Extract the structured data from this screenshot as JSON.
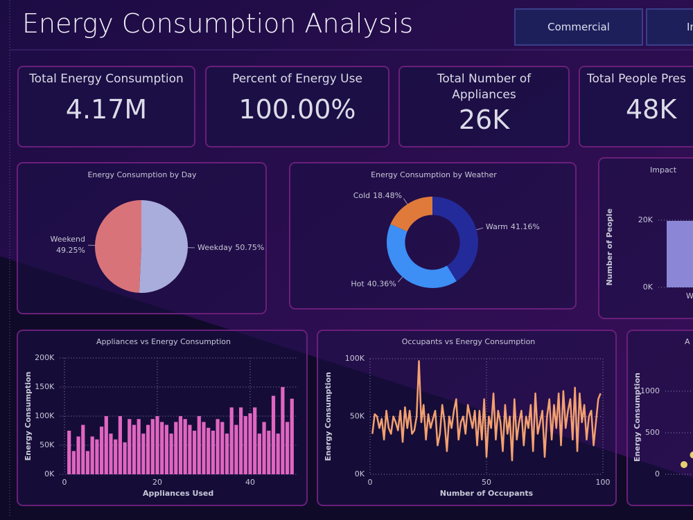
{
  "header": {
    "title": "Energy Consumption Analysis",
    "buttons": [
      "Commercial",
      "In"
    ]
  },
  "kpis": [
    {
      "label": "Total Energy Consumption",
      "value": "4.17M"
    },
    {
      "label": "Percent of Energy Use",
      "value": "100.00%"
    },
    {
      "label": "Total Number of Appliances",
      "value": "26K"
    },
    {
      "label": "Total People Pres",
      "value": "48K"
    }
  ],
  "chart_data": [
    {
      "type": "pie",
      "title": "Energy Consumption by Day",
      "categories": [
        "Weekday",
        "Weekend"
      ],
      "values": [
        50.75,
        49.25
      ],
      "value_labels": [
        "50.75%",
        "49.25%"
      ],
      "colors": [
        "#a9addc",
        "#d9737a"
      ]
    },
    {
      "type": "donut",
      "title": "Energy Consumption by Weather",
      "categories": [
        "Warm",
        "Hot",
        "Cold"
      ],
      "values": [
        41.16,
        40.36,
        18.48
      ],
      "value_labels": [
        "41.16%",
        "40.36%",
        "18.48%"
      ],
      "colors": [
        "#232a9a",
        "#3d8ef5",
        "#e07a3a"
      ]
    },
    {
      "type": "bar",
      "title": "Impact",
      "ylabel": "Number of People",
      "categories": [
        "Wa"
      ],
      "values": [
        19800
      ],
      "color": "#8b86d6",
      "ylim": [
        0,
        24000
      ],
      "yticks": [
        {
          "value": 0,
          "label": "0K"
        },
        {
          "value": 20000,
          "label": "20K"
        }
      ],
      "grid": true
    },
    {
      "type": "xbar",
      "title": "Appliances vs Energy Consumption",
      "xlabel": "Appliances Used",
      "ylabel": "Energy Consumption",
      "x": [
        1,
        2,
        3,
        4,
        5,
        6,
        7,
        8,
        9,
        10,
        11,
        12,
        13,
        14,
        15,
        16,
        17,
        18,
        19,
        20,
        21,
        22,
        23,
        24,
        25,
        26,
        27,
        28,
        29,
        30,
        31,
        32,
        33,
        34,
        35,
        36,
        37,
        38,
        39,
        40,
        41,
        42,
        43,
        44,
        45,
        46,
        47,
        48,
        49
      ],
      "values": [
        75000,
        40000,
        65000,
        85000,
        40000,
        65000,
        60000,
        82000,
        100000,
        70000,
        60000,
        100000,
        55000,
        95000,
        85000,
        95000,
        70000,
        85000,
        95000,
        100000,
        90000,
        85000,
        70000,
        90000,
        100000,
        95000,
        85000,
        75000,
        100000,
        90000,
        80000,
        75000,
        95000,
        90000,
        70000,
        115000,
        85000,
        115000,
        100000,
        105000,
        115000,
        70000,
        90000,
        75000,
        135000,
        70000,
        150000,
        90000,
        130000
      ],
      "color": "#e066c0",
      "xlim": [
        -1,
        50
      ],
      "xticks": [
        0,
        20,
        40
      ],
      "ylim": [
        0,
        200000
      ],
      "yticks": [
        {
          "value": 0,
          "label": "0K"
        },
        {
          "value": 50000,
          "label": "50K"
        },
        {
          "value": 100000,
          "label": "100K"
        },
        {
          "value": 150000,
          "label": "150K"
        },
        {
          "value": 200000,
          "label": "200K"
        }
      ],
      "grid": true
    },
    {
      "type": "line",
      "title": "Occupants vs Energy Consumption",
      "xlabel": "Number of Occupants",
      "ylabel": "Energy Consumption",
      "x": [
        1,
        2,
        3,
        4,
        5,
        6,
        7,
        8,
        9,
        10,
        11,
        12,
        13,
        14,
        15,
        16,
        17,
        18,
        19,
        20,
        21,
        22,
        23,
        24,
        25,
        26,
        27,
        28,
        29,
        30,
        31,
        32,
        33,
        34,
        35,
        36,
        37,
        38,
        39,
        40,
        41,
        42,
        43,
        44,
        45,
        46,
        47,
        48,
        49,
        50,
        51,
        52,
        53,
        54,
        55,
        56,
        57,
        58,
        59,
        60,
        61,
        62,
        63,
        64,
        65,
        66,
        67,
        68,
        69,
        70,
        71,
        72,
        73,
        74,
        75,
        76,
        77,
        78,
        79,
        80,
        81,
        82,
        83,
        84,
        85,
        86,
        87,
        88,
        89,
        90,
        91,
        92,
        93,
        94,
        95,
        96,
        97,
        98,
        99
      ],
      "values": [
        35000,
        52000,
        50000,
        40000,
        48000,
        30000,
        55000,
        40000,
        35000,
        50000,
        45000,
        38000,
        55000,
        28000,
        58000,
        40000,
        55000,
        35000,
        38000,
        50000,
        98000,
        45000,
        60000,
        30000,
        52000,
        40000,
        48000,
        55000,
        25000,
        35000,
        60000,
        45000,
        20000,
        50000,
        40000,
        55000,
        65000,
        30000,
        45000,
        50000,
        35000,
        60000,
        50000,
        40000,
        55000,
        25000,
        55000,
        30000,
        65000,
        15000,
        50000,
        40000,
        70000,
        30000,
        55000,
        45000,
        20000,
        60000,
        35000,
        50000,
        12000,
        65000,
        30000,
        45000,
        55000,
        25000,
        50000,
        40000,
        60000,
        20000,
        70000,
        35000,
        45000,
        55000,
        15000,
        50000,
        65000,
        30000,
        60000,
        40000,
        70000,
        25000,
        72000,
        40000,
        55000,
        65000,
        30000,
        75000,
        20000,
        70000,
        45000,
        60000,
        30000,
        50000,
        55000,
        25000,
        45000,
        65000,
        70000
      ],
      "color": "#f4a070",
      "xlim": [
        0,
        100
      ],
      "xticks": [
        0,
        50,
        100
      ],
      "ylim": [
        0,
        100000
      ],
      "yticks": [
        {
          "value": 0,
          "label": "0K"
        },
        {
          "value": 50000,
          "label": "50K"
        },
        {
          "value": 100000,
          "label": "100K"
        }
      ],
      "grid": true
    },
    {
      "type": "scatter",
      "title": "A",
      "ylabel": "Energy Consumption",
      "x": [
        1,
        1.5
      ],
      "values": [
        117,
        233
      ],
      "color": "#e8d070",
      "xlim": [
        0,
        10
      ],
      "ylim": [
        0,
        1375
      ],
      "yticks": [
        0,
        500,
        1000
      ],
      "grid": true
    }
  ]
}
